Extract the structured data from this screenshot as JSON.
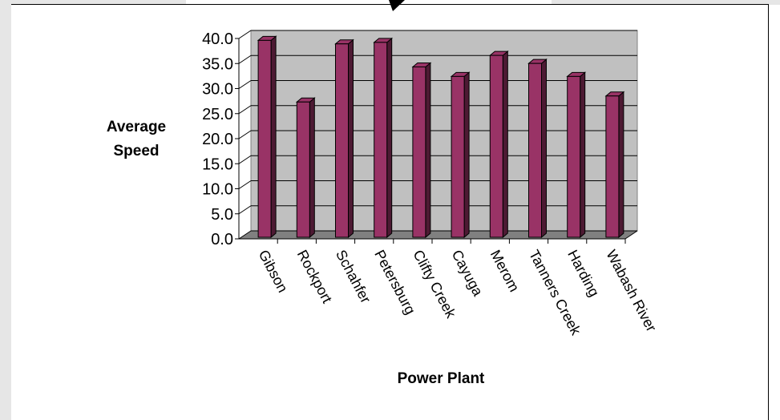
{
  "chart_data": {
    "type": "bar",
    "xlabel": "Power Plant",
    "ylabel": "Average Speed",
    "categories": [
      "Gibson",
      "Rockport",
      "Schahfer",
      "Petersburg",
      "Clifty Creek",
      "Cayuga",
      "Merom",
      "Tanners Creek",
      "Harding",
      "Wabash River"
    ],
    "values": [
      39.3,
      27.0,
      38.6,
      38.9,
      34.0,
      32.1,
      36.3,
      34.7,
      32.1,
      28.2
    ],
    "ylim": [
      0,
      40
    ],
    "ytick_labels": [
      "0.0",
      "5.0",
      "10.0",
      "15.0",
      "20.0",
      "25.0",
      "30.0",
      "35.0",
      "40.0"
    ],
    "grid": true,
    "bar_color": "#993366",
    "wall_color": "#c0c0c0",
    "floor_color": "#808080",
    "legend": "none"
  }
}
